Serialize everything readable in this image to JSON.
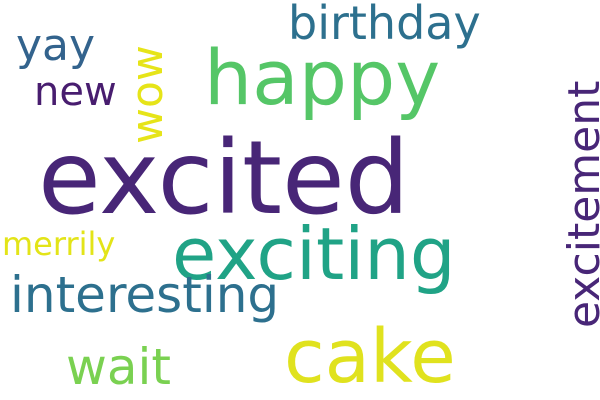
{
  "words": {
    "excited": {
      "text": "excited",
      "color": "#482677"
    },
    "happy": {
      "text": "happy",
      "color": "#55c667"
    },
    "exciting": {
      "text": "exciting",
      "color": "#20a386"
    },
    "cake": {
      "text": "cake",
      "color": "#e0e21e"
    },
    "birthday": {
      "text": "birthday",
      "color": "#2d708e"
    },
    "interesting": {
      "text": "interesting",
      "color": "#2d708e"
    },
    "excitement": {
      "text": "excitement",
      "color": "#482677"
    },
    "wow": {
      "text": "wow",
      "color": "#e6e419"
    },
    "yay": {
      "text": "yay",
      "color": "#33638d"
    },
    "new": {
      "text": "new",
      "color": "#481d6f"
    },
    "wait": {
      "text": "wait",
      "color": "#7ad151"
    },
    "merrily": {
      "text": "merrily",
      "color": "#e3e418"
    }
  }
}
